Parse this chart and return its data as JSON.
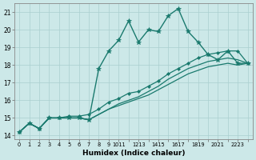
{
  "xlabel": "Humidex (Indice chaleur)",
  "ylabel": "",
  "bg_color": "#cce8e8",
  "grid_color": "#aacfcf",
  "line_color": "#1a7a6e",
  "xlim": [
    -0.5,
    23.5
  ],
  "ylim": [
    13.8,
    21.5
  ],
  "yticks": [
    14,
    15,
    16,
    17,
    18,
    19,
    20,
    21
  ],
  "xtick_labels": [
    "0",
    "1",
    "2",
    "3",
    "4",
    "5",
    "6",
    "7",
    "8",
    "9",
    "1011",
    "1213",
    "1415",
    "1617",
    "1819",
    "2021",
    "2223"
  ],
  "series": [
    {
      "x": [
        0,
        1,
        2,
        3,
        4,
        5,
        6,
        7,
        8,
        9,
        10,
        11,
        12,
        13,
        14,
        15,
        16,
        17,
        18,
        19,
        20,
        21,
        22,
        23
      ],
      "y": [
        14.2,
        14.7,
        14.4,
        15.0,
        15.0,
        15.0,
        15.0,
        14.9,
        17.8,
        18.8,
        19.4,
        20.5,
        19.3,
        20.0,
        19.9,
        20.8,
        21.2,
        19.9,
        19.3,
        18.6,
        18.3,
        18.8,
        18.1,
        18.1
      ],
      "marker": "*",
      "markersize": 4,
      "linewidth": 1.0
    },
    {
      "x": [
        0,
        1,
        2,
        3,
        4,
        5,
        6,
        7,
        8,
        9,
        10,
        11,
        12,
        13,
        14,
        15,
        16,
        17,
        18,
        19,
        20,
        21,
        22,
        23
      ],
      "y": [
        14.2,
        14.7,
        14.4,
        15.0,
        15.0,
        15.1,
        15.1,
        15.2,
        15.5,
        15.9,
        16.1,
        16.4,
        16.5,
        16.8,
        17.1,
        17.5,
        17.8,
        18.1,
        18.4,
        18.6,
        18.7,
        18.8,
        18.8,
        18.1
      ],
      "marker": "D",
      "markersize": 2,
      "linewidth": 0.9
    },
    {
      "x": [
        0,
        1,
        2,
        3,
        4,
        5,
        6,
        7,
        8,
        9,
        10,
        11,
        12,
        13,
        14,
        15,
        16,
        17,
        18,
        19,
        20,
        21,
        22,
        23
      ],
      "y": [
        14.2,
        14.7,
        14.4,
        15.0,
        15.0,
        15.0,
        15.0,
        14.9,
        15.2,
        15.5,
        15.8,
        16.0,
        16.2,
        16.5,
        16.8,
        17.2,
        17.5,
        17.8,
        18.0,
        18.2,
        18.3,
        18.4,
        18.3,
        18.1
      ],
      "marker": null,
      "markersize": 0,
      "linewidth": 0.9
    },
    {
      "x": [
        0,
        1,
        2,
        3,
        4,
        5,
        6,
        7,
        8,
        9,
        10,
        11,
        12,
        13,
        14,
        15,
        16,
        17,
        18,
        19,
        20,
        21,
        22,
        23
      ],
      "y": [
        14.2,
        14.7,
        14.4,
        15.0,
        15.0,
        15.0,
        15.0,
        14.9,
        15.2,
        15.5,
        15.7,
        15.9,
        16.1,
        16.3,
        16.6,
        16.9,
        17.2,
        17.5,
        17.7,
        17.9,
        18.0,
        18.1,
        18.0,
        18.1
      ],
      "marker": null,
      "markersize": 0,
      "linewidth": 0.9
    }
  ]
}
